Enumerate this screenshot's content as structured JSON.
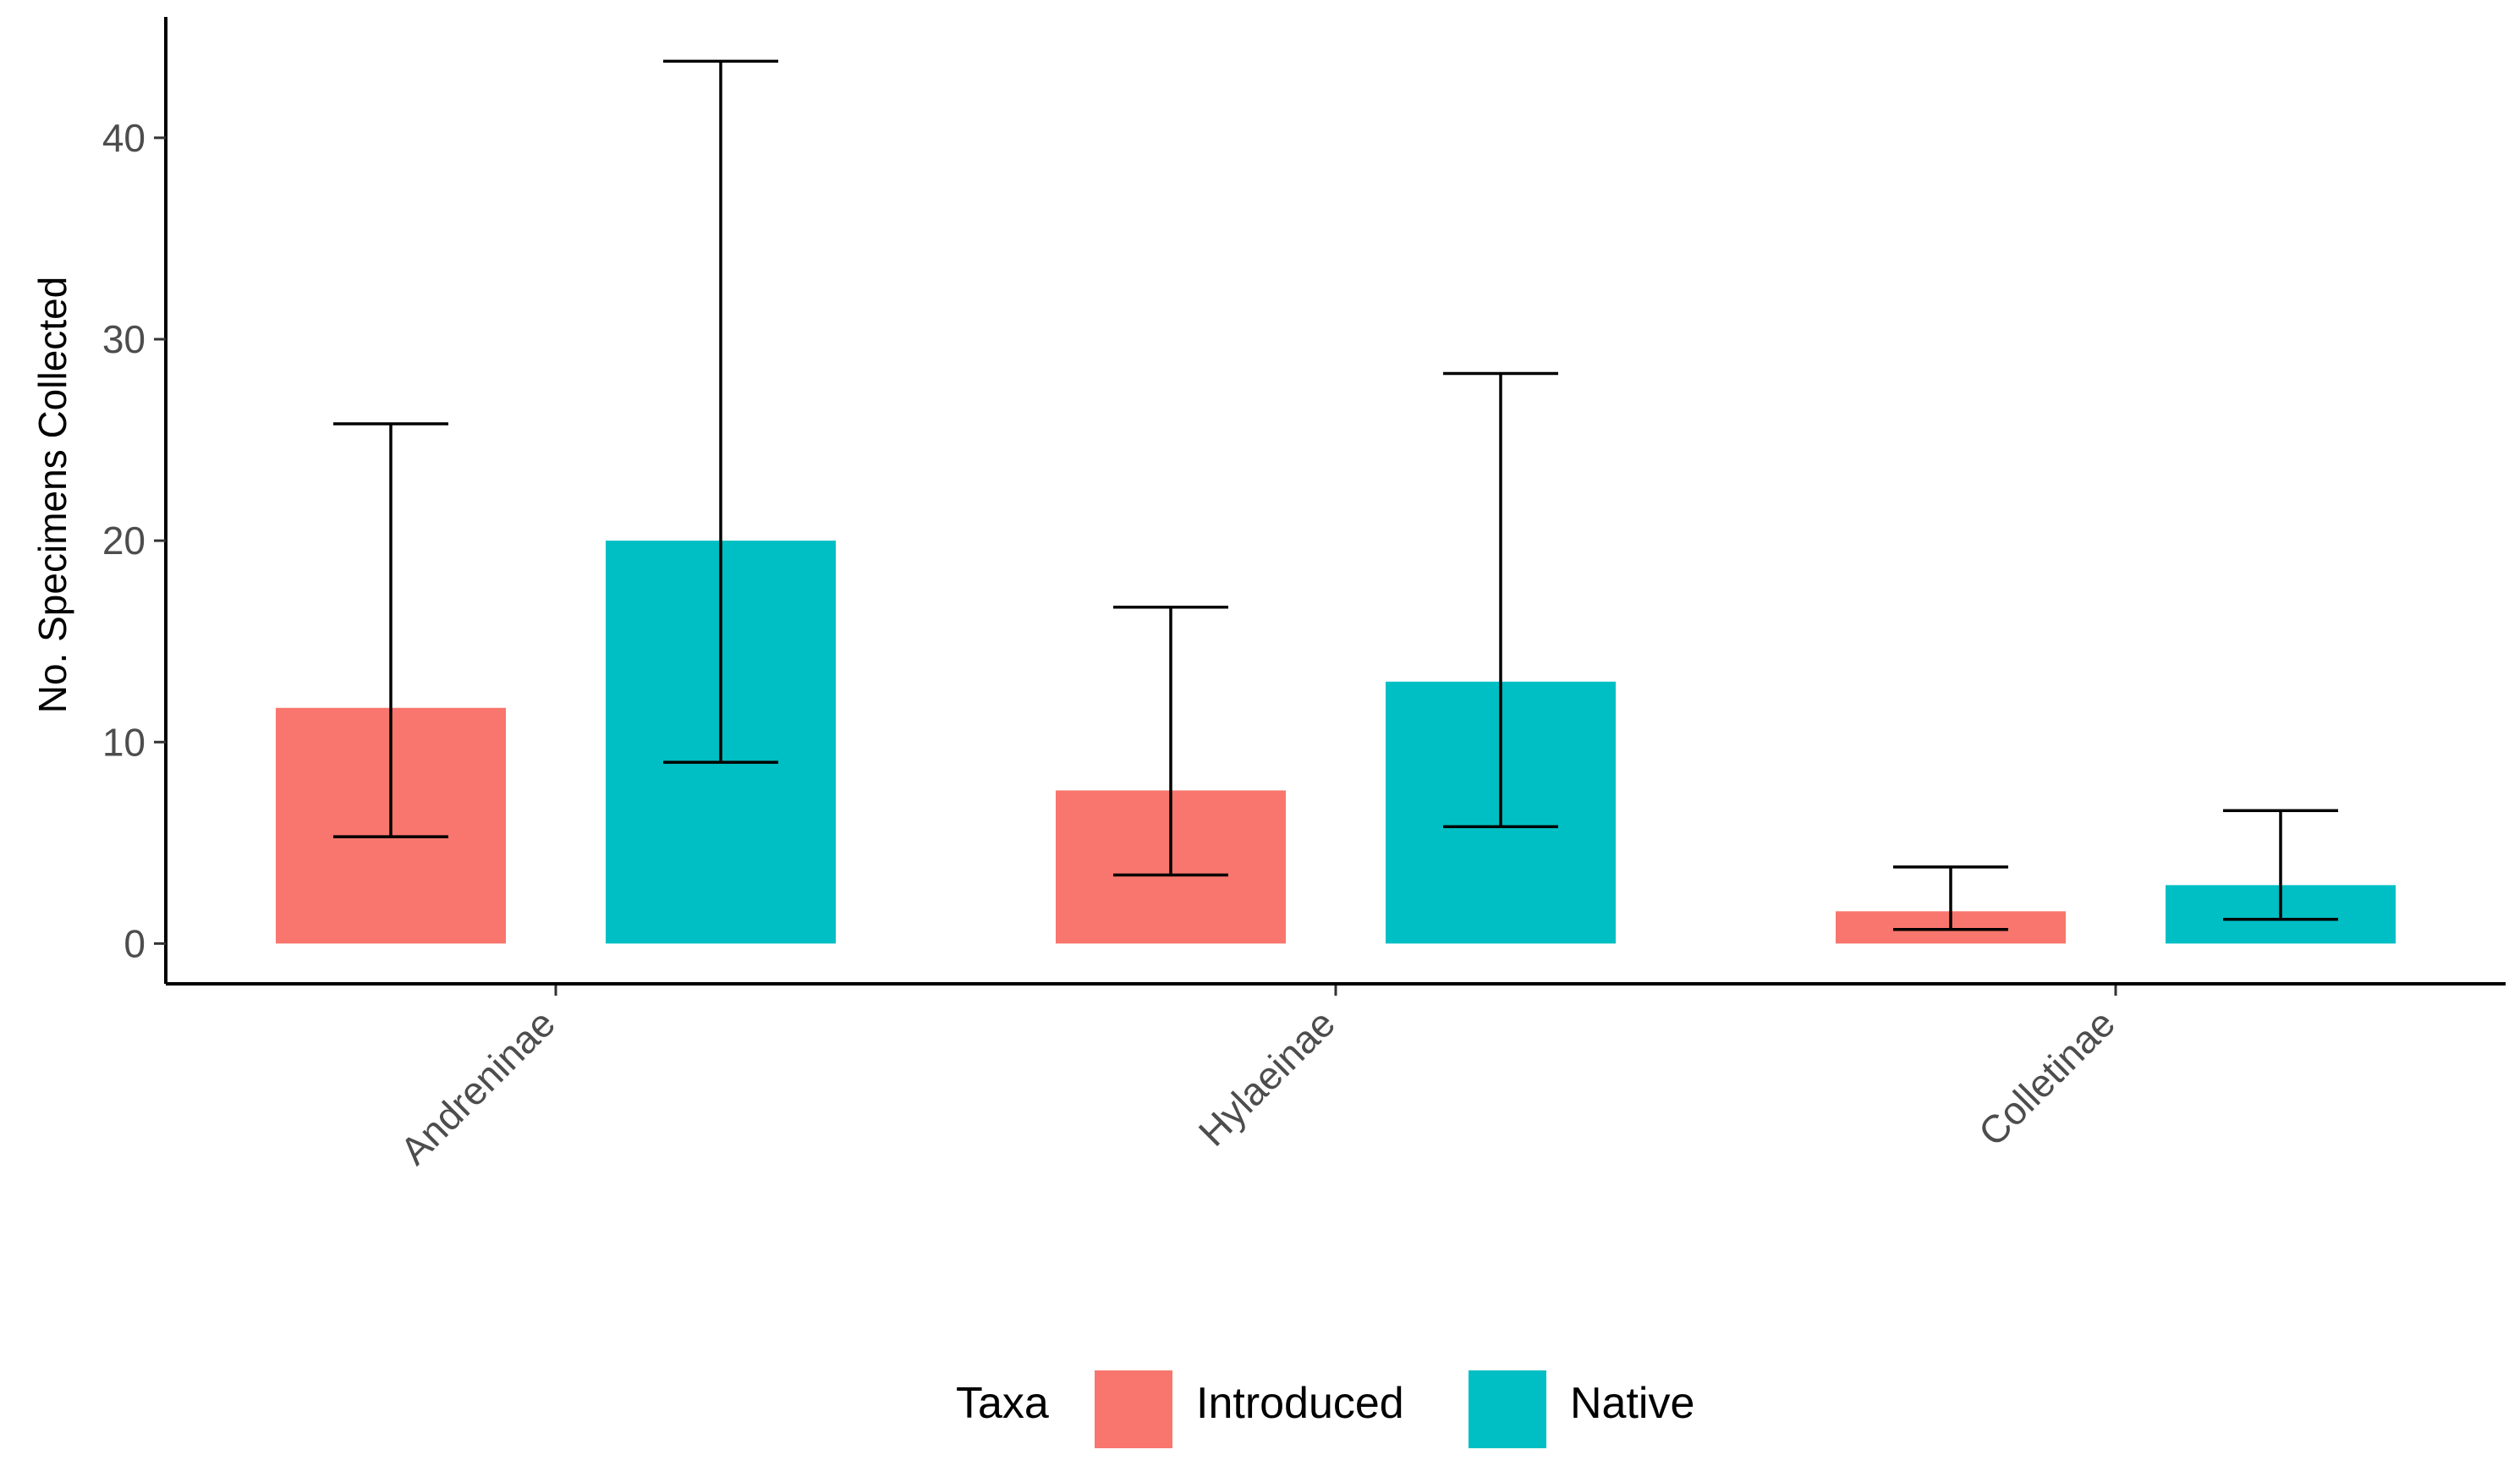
{
  "chart_data": {
    "type": "bar",
    "title": "",
    "xlabel": "",
    "ylabel": "No. Specimens Collected",
    "categories": [
      "Andreninae",
      "Hylaeinae",
      "Colletinae"
    ],
    "series": [
      {
        "name": "Introduced",
        "color": "#F8766D",
        "values": [
          11.7,
          7.6,
          1.6
        ],
        "error_low": [
          5.3,
          3.4,
          0.7
        ],
        "error_high": [
          25.8,
          16.7,
          3.8
        ]
      },
      {
        "name": "Native",
        "color": "#00BFC4",
        "values": [
          20.0,
          13.0,
          2.9
        ],
        "error_low": [
          9.0,
          5.8,
          1.2
        ],
        "error_high": [
          43.8,
          28.3,
          6.6
        ]
      }
    ],
    "ylim": [
      -2,
      46
    ],
    "yticks": [
      0,
      10,
      20,
      30,
      40
    ],
    "grid": false,
    "legend": {
      "title": "Taxa",
      "position": "bottom"
    },
    "x_tick_rotation": "45 degrees"
  }
}
